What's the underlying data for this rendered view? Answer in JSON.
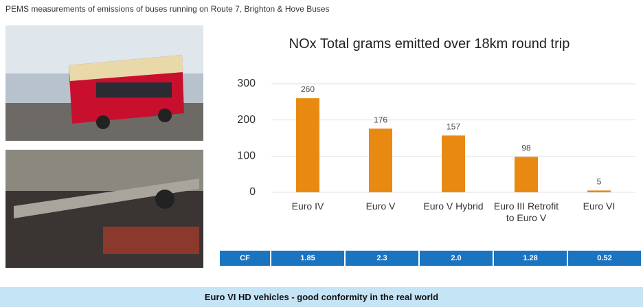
{
  "header": {
    "title": "PEMS measurements of emissions of buses running on Route 7, Brighton & Hove Buses"
  },
  "chart_data": {
    "type": "bar",
    "title": "NOx Total grams emitted over 18km round trip",
    "categories": [
      "Euro IV",
      "Euro V",
      "Euro V Hybrid",
      "Euro III Retrofit to Euro V",
      "Euro VI"
    ],
    "values": [
      260,
      176,
      157,
      98,
      5
    ],
    "color": "#e88a12",
    "ylim": [
      0,
      300
    ],
    "yticks": [
      0,
      100,
      200,
      300
    ],
    "grid": true
  },
  "cf_table": {
    "label": "CF",
    "values": [
      "1.85",
      "2.3",
      "2.0",
      "1.28",
      "0.52"
    ]
  },
  "footer": {
    "text": "Euro VI HD vehicles - good conformity in the real world"
  }
}
